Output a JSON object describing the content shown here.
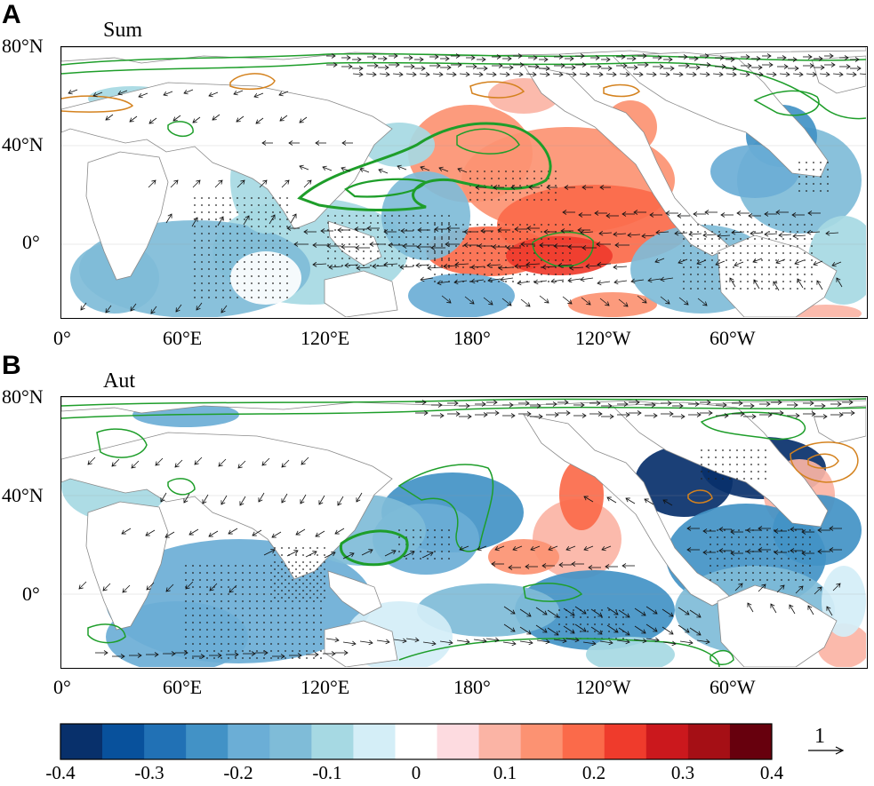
{
  "panels": [
    {
      "letter": "A",
      "season": "Sum",
      "lat_labels": [
        "80°N",
        "40°N",
        "0°"
      ],
      "lon_labels": [
        "0°",
        "60°E",
        "120°E",
        "180°",
        "120°W",
        "60°W"
      ]
    },
    {
      "letter": "B",
      "season": "Aut",
      "lat_labels": [
        "80°N",
        "40°N",
        "0°"
      ],
      "lon_labels": [
        "0°",
        "60°E",
        "120°E",
        "180°",
        "120°W",
        "60°W"
      ]
    }
  ],
  "colorbar": {
    "labels": [
      "-0.4",
      "-0.3",
      "-0.2",
      "-0.1",
      "0",
      "0.1",
      "0.2",
      "0.3",
      "0.4"
    ],
    "colors": [
      "#08306b",
      "#08519c",
      "#2171b5",
      "#4292c6",
      "#6baed6",
      "#7fbcd8",
      "#a6d9e3",
      "#d4eef7",
      "#ffffff",
      "#fddbe0",
      "#fbb4a5",
      "#fc9272",
      "#fb6a4a",
      "#ef3b2c",
      "#cb181d",
      "#a50f15",
      "#67000d"
    ]
  },
  "reference_vector": {
    "label": "1"
  },
  "contour_colors": {
    "positive": "#1e9e2a",
    "negative": "#d4821e"
  }
}
